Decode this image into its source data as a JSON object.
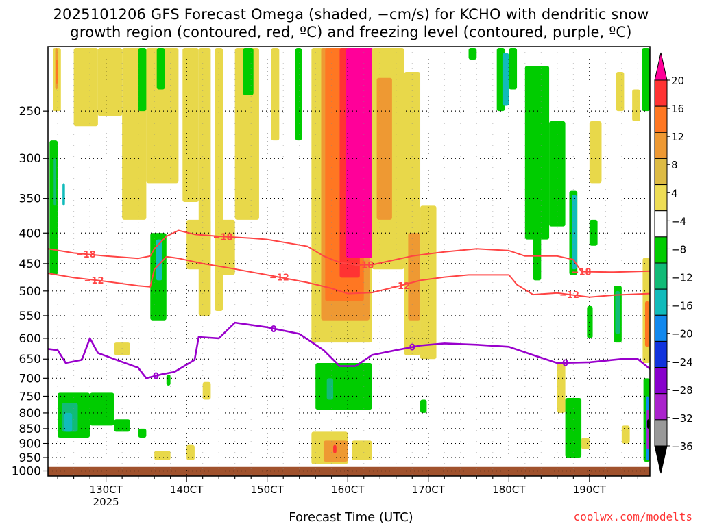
{
  "title": {
    "line1": "2025101206 GFS Forecast Omega (shaded, −cm/s) for KCHO with dendritic snow",
    "line2": "growth region (contoured, red, ºC) and freezing level (contoured, purple, ºC)"
  },
  "credit": "coolwx.com/modelts",
  "chart_data": {
    "type": "heatmap",
    "xlabel": "Forecast Time (UTC)",
    "ylabel": "",
    "x_ticks": [
      {
        "label": "130CT",
        "hour": 130,
        "sublabel": "2025"
      },
      {
        "label": "140CT",
        "hour": 140
      },
      {
        "label": "150CT",
        "hour": 150
      },
      {
        "label": "160CT",
        "hour": 160
      },
      {
        "label": "170CT",
        "hour": 170
      },
      {
        "label": "180CT",
        "hour": 180
      },
      {
        "label": "190CT",
        "hour": 190
      }
    ],
    "xlim": [
      122.8,
      197.5
    ],
    "y_ticks": [
      250,
      300,
      350,
      400,
      450,
      500,
      550,
      600,
      650,
      700,
      750,
      800,
      850,
      900,
      950,
      1000
    ],
    "ylim": [
      1020,
      195
    ],
    "y_scale": "log",
    "colorbar": {
      "labels": [
        "20",
        "16",
        "12",
        "8",
        "4",
        "−4",
        "−8",
        "−12",
        "−16",
        "−20",
        "−24",
        "−28",
        "−32",
        "−36"
      ],
      "colors": [
        "#ff0099",
        "#ff3333",
        "#ff7722",
        "#ee9933",
        "#ddbb44",
        "#eedd55",
        "#ffffff",
        "#00cc00",
        "#11bb77",
        "#11bbbb",
        "#1188ee",
        "#1133dd",
        "#8800cc",
        "#aa22cc",
        "#999999",
        "#000000"
      ]
    },
    "contours": {
      "dendritic_minus18": {
        "label": "−18",
        "color": "#ff4444",
        "points": [
          [
            122.8,
            425
          ],
          [
            126,
            432
          ],
          [
            130,
            437
          ],
          [
            134,
            441
          ],
          [
            135.5,
            437
          ],
          [
            136,
            425
          ],
          [
            137.5,
            405
          ],
          [
            139,
            396
          ],
          [
            141,
            402
          ],
          [
            144,
            405
          ],
          [
            148,
            408
          ],
          [
            150,
            410
          ],
          [
            155,
            421
          ],
          [
            157,
            437
          ],
          [
            159,
            448
          ],
          [
            161,
            452
          ],
          [
            163,
            452
          ],
          [
            165,
            446
          ],
          [
            168,
            437
          ],
          [
            172,
            430
          ],
          [
            176,
            425
          ],
          [
            180,
            428
          ],
          [
            182,
            437
          ],
          [
            186,
            437
          ],
          [
            188,
            443
          ],
          [
            189,
            464
          ],
          [
            193,
            465
          ],
          [
            197.5,
            463
          ]
        ],
        "label_hours": [
          127.5,
          144.5,
          162,
          189
        ]
      },
      "dendritic_minus12": {
        "label": "−12",
        "color": "#ff4444",
        "points": [
          [
            122.8,
            467
          ],
          [
            126,
            475
          ],
          [
            130,
            482
          ],
          [
            134,
            490
          ],
          [
            135.5,
            492
          ],
          [
            136,
            460
          ],
          [
            137.5,
            438
          ],
          [
            139,
            441
          ],
          [
            142,
            450
          ],
          [
            145,
            457
          ],
          [
            150,
            470
          ],
          [
            155,
            484
          ],
          [
            158,
            495
          ],
          [
            160,
            505
          ],
          [
            163,
            503
          ],
          [
            166,
            492
          ],
          [
            169,
            480
          ],
          [
            172,
            474
          ],
          [
            175,
            470
          ],
          [
            180,
            470
          ],
          [
            181,
            488
          ],
          [
            183,
            507
          ],
          [
            186,
            504
          ],
          [
            190,
            512
          ],
          [
            193,
            508
          ],
          [
            197.5,
            505
          ]
        ],
        "label_hours": [
          128.5,
          151.5,
          166.5,
          187.5
        ]
      },
      "freezing_level": {
        "label": "0",
        "color": "#9900cc",
        "points": [
          [
            122.8,
            625
          ],
          [
            124,
            628
          ],
          [
            125,
            660
          ],
          [
            127,
            652
          ],
          [
            128,
            600
          ],
          [
            129,
            635
          ],
          [
            131,
            650
          ],
          [
            134,
            672
          ],
          [
            135,
            700
          ],
          [
            137,
            689
          ],
          [
            138.5,
            683
          ],
          [
            141,
            652
          ],
          [
            141.5,
            597
          ],
          [
            144,
            600
          ],
          [
            146,
            565
          ],
          [
            150,
            575
          ],
          [
            154,
            590
          ],
          [
            157,
            628
          ],
          [
            159,
            668
          ],
          [
            161,
            668
          ],
          [
            163,
            640
          ],
          [
            166,
            628
          ],
          [
            169,
            617
          ],
          [
            172,
            612
          ],
          [
            176,
            615
          ],
          [
            180,
            620
          ],
          [
            183,
            640
          ],
          [
            186,
            660
          ],
          [
            190,
            658
          ],
          [
            194,
            650
          ],
          [
            196,
            650
          ],
          [
            197.5,
            675
          ]
        ],
        "label_hours": [
          136.2,
          150.8,
          168,
          187
        ]
      }
    },
    "shading_regions": [
      {
        "cat": "4-8",
        "x": [
          123.4,
          124.4
        ],
        "p": [
          196,
          250
        ]
      },
      {
        "cat": "8-12",
        "x": [
          123.7,
          124.0
        ],
        "p": [
          196,
          230
        ]
      },
      {
        "cat": "12-16",
        "x": [
          123.8,
          124.0
        ],
        "p": [
          205,
          225
        ]
      },
      {
        "cat": "4-8",
        "x": [
          126,
          129
        ],
        "p": [
          196,
          265
        ]
      },
      {
        "cat": "4-8",
        "x": [
          129,
          132
        ],
        "p": [
          196,
          255
        ]
      },
      {
        "cat": "4-8",
        "x": [
          132,
          135
        ],
        "p": [
          196,
          380
        ]
      },
      {
        "cat": "4-8",
        "x": [
          135,
          139
        ],
        "p": [
          196,
          330
        ]
      },
      {
        "cat": "4-8",
        "x": [
          139.5,
          141.5
        ],
        "p": [
          196,
          355
        ]
      },
      {
        "cat": "4-8",
        "x": [
          141.5,
          143
        ],
        "p": [
          196,
          550
        ]
      },
      {
        "cat": "4-8",
        "x": [
          143.5,
          144.5
        ],
        "p": [
          196,
          540
        ]
      },
      {
        "cat": "4-8",
        "x": [
          146,
          149
        ],
        "p": [
          196,
          380
        ]
      },
      {
        "cat": "4-8",
        "x": [
          150.5,
          151.5
        ],
        "p": [
          196,
          280
        ]
      },
      {
        "cat": "4-8",
        "x": [
          155.5,
          163
        ],
        "p": [
          196,
          610
        ]
      },
      {
        "cat": "8-12",
        "x": [
          156.7,
          162.7
        ],
        "p": [
          196,
          560
        ]
      },
      {
        "cat": "12-16",
        "x": [
          157.2,
          162
        ],
        "p": [
          196,
          520
        ]
      },
      {
        "cat": "16-20",
        "x": [
          159,
          161.5
        ],
        "p": [
          196,
          475
        ]
      },
      {
        "cat": ">20",
        "x": [
          159.8,
          163.2
        ],
        "p": [
          196,
          440
        ]
      },
      {
        "cat": "4-8",
        "x": [
          163,
          167
        ],
        "p": [
          196,
          460
        ]
      },
      {
        "cat": "8-12",
        "x": [
          163.6,
          165.5
        ],
        "p": [
          220,
          380
        ]
      },
      {
        "cat": "4-8",
        "x": [
          167,
          169
        ],
        "p": [
          215,
          640
        ]
      },
      {
        "cat": "8-12",
        "x": [
          167.5,
          169
        ],
        "p": [
          400,
          560
        ]
      },
      {
        "cat": "4-8",
        "x": [
          169,
          171
        ],
        "p": [
          360,
          650
        ]
      },
      {
        "cat": "4-8",
        "x": [
          140,
          143
        ],
        "p": [
          380,
          460
        ]
      },
      {
        "cat": "4-8",
        "x": [
          144,
          146
        ],
        "p": [
          380,
          470
        ]
      },
      {
        "cat": "4-8",
        "x": [
          131,
          133
        ],
        "p": [
          610,
          640
        ]
      },
      {
        "cat": "4-8",
        "x": [
          142,
          143
        ],
        "p": [
          710,
          760
        ]
      },
      {
        "cat": "4-8",
        "x": [
          136,
          138
        ],
        "p": [
          925,
          960
        ]
      },
      {
        "cat": "4-8",
        "x": [
          140,
          141
        ],
        "p": [
          905,
          960
        ]
      },
      {
        "cat": "4-8",
        "x": [
          155.5,
          160
        ],
        "p": [
          860,
          975
        ]
      },
      {
        "cat": "8-12",
        "x": [
          157,
          160
        ],
        "p": [
          890,
          965
        ]
      },
      {
        "cat": "16-20",
        "x": [
          158.2,
          158.6
        ],
        "p": [
          905,
          935
        ]
      },
      {
        "cat": "4-8",
        "x": [
          160.5,
          163
        ],
        "p": [
          890,
          960
        ]
      },
      {
        "cat": "4-8",
        "x": [
          186,
          187
        ],
        "p": [
          660,
          800
        ]
      },
      {
        "cat": "4-8",
        "x": [
          190,
          191.5
        ],
        "p": [
          260,
          330
        ]
      },
      {
        "cat": "4-8",
        "x": [
          193.3,
          194.3
        ],
        "p": [
          215,
          250
        ]
      },
      {
        "cat": "4-8",
        "x": [
          195.3,
          196.3
        ],
        "p": [
          230,
          260
        ]
      },
      {
        "cat": "4-8",
        "x": [
          196.6,
          197.5
        ],
        "p": [
          440,
          660
        ]
      },
      {
        "cat": "12-16",
        "x": [
          196.9,
          197.4
        ],
        "p": [
          520,
          620
        ]
      },
      {
        "cat": "4-8",
        "x": [
          194,
          195
        ],
        "p": [
          840,
          900
        ]
      },
      {
        "cat": "4-8",
        "x": [
          189,
          190
        ],
        "p": [
          880,
          920
        ]
      },
      {
        "cat": "-4--8",
        "x": [
          123,
          124
        ],
        "p": [
          280,
          470
        ]
      },
      {
        "cat": "-8--12",
        "x": [
          123.5,
          123.8
        ],
        "p": [
          300,
          360
        ]
      },
      {
        "cat": "-12--16",
        "x": [
          124.6,
          124.9
        ],
        "p": [
          330,
          360
        ]
      },
      {
        "cat": "-4--8",
        "x": [
          134,
          135
        ],
        "p": [
          196,
          250
        ]
      },
      {
        "cat": "-4--8",
        "x": [
          136.3,
          137.3
        ],
        "p": [
          196,
          230
        ]
      },
      {
        "cat": "-4--8",
        "x": [
          135.5,
          137.5
        ],
        "p": [
          400,
          560
        ]
      },
      {
        "cat": "-12--16",
        "x": [
          136.2,
          137
        ],
        "p": [
          410,
          480
        ]
      },
      {
        "cat": "-4--8",
        "x": [
          137.5,
          138
        ],
        "p": [
          690,
          720
        ]
      },
      {
        "cat": "-4--8",
        "x": [
          147,
          148.3
        ],
        "p": [
          196,
          235
        ]
      },
      {
        "cat": "-4--8",
        "x": [
          153.5,
          154.3
        ],
        "p": [
          196,
          280
        ]
      },
      {
        "cat": "-4--8",
        "x": [
          156,
          163
        ],
        "p": [
          660,
          790
        ]
      },
      {
        "cat": "-8--12",
        "x": [
          157.4,
          158.2
        ],
        "p": [
          700,
          760
        ]
      },
      {
        "cat": "-4--8",
        "x": [
          175,
          176
        ],
        "p": [
          196,
          205
        ]
      },
      {
        "cat": "-4--8",
        "x": [
          178.5,
          179.5
        ],
        "p": [
          196,
          250
        ]
      },
      {
        "cat": "-4--8",
        "x": [
          180,
          181
        ],
        "p": [
          196,
          230
        ]
      },
      {
        "cat": "-4--8",
        "x": [
          182,
          185
        ],
        "p": [
          210,
          410
        ]
      },
      {
        "cat": "-4--8",
        "x": [
          185,
          187
        ],
        "p": [
          260,
          390
        ]
      },
      {
        "cat": "-12--16",
        "x": [
          179.2,
          180
        ],
        "p": [
          200,
          245
        ]
      },
      {
        "cat": "-4--8",
        "x": [
          187.5,
          188.5
        ],
        "p": [
          340,
          470
        ]
      },
      {
        "cat": "-12--16",
        "x": [
          187.8,
          188.4
        ],
        "p": [
          345,
          460
        ]
      },
      {
        "cat": "-4--8",
        "x": [
          190,
          191
        ],
        "p": [
          380,
          420
        ]
      },
      {
        "cat": "-4--8",
        "x": [
          193,
          194
        ],
        "p": [
          490,
          610
        ]
      },
      {
        "cat": "-8--12",
        "x": [
          193.2,
          193.8
        ],
        "p": [
          500,
          590
        ]
      },
      {
        "cat": "-4--8",
        "x": [
          187,
          189
        ],
        "p": [
          755,
          950
        ]
      },
      {
        "cat": "-4--8",
        "x": [
          196.5,
          197.5
        ],
        "p": [
          196,
          250
        ]
      },
      {
        "cat": "-4--8",
        "x": [
          196.7,
          197.5
        ],
        "p": [
          700,
          965
        ]
      },
      {
        "cat": "-16--20",
        "x": [
          197.0,
          197.4
        ],
        "p": [
          750,
          960
        ]
      },
      {
        "cat": "-28--32",
        "x": [
          197.1,
          197.4
        ],
        "p": [
          790,
          920
        ]
      },
      {
        "cat": "<-36",
        "x": [
          197.15,
          197.45
        ],
        "p": [
          820,
          850
        ]
      },
      {
        "cat": "-4--8",
        "x": [
          124,
          128
        ],
        "p": [
          740,
          880
        ]
      },
      {
        "cat": "-8--12",
        "x": [
          124.5,
          126.5
        ],
        "p": [
          770,
          860
        ]
      },
      {
        "cat": "-12--16",
        "x": [
          124.8,
          125.8
        ],
        "p": [
          800,
          860
        ]
      },
      {
        "cat": "-4--8",
        "x": [
          128,
          131
        ],
        "p": [
          740,
          840
        ]
      },
      {
        "cat": "-4--8",
        "x": [
          131,
          133
        ],
        "p": [
          820,
          860
        ]
      },
      {
        "cat": "-4--8",
        "x": [
          134,
          135
        ],
        "p": [
          850,
          880
        ]
      },
      {
        "cat": "-4--8",
        "x": [
          169,
          169.8
        ],
        "p": [
          760,
          800
        ]
      },
      {
        "cat": "-4--8",
        "x": [
          183,
          184
        ],
        "p": [
          320,
          480
        ]
      },
      {
        "cat": "-4--8",
        "x": [
          189.7,
          190.4
        ],
        "p": [
          530,
          600
        ]
      }
    ],
    "ground": {
      "p_from": 985,
      "color": "#a0522d"
    }
  }
}
